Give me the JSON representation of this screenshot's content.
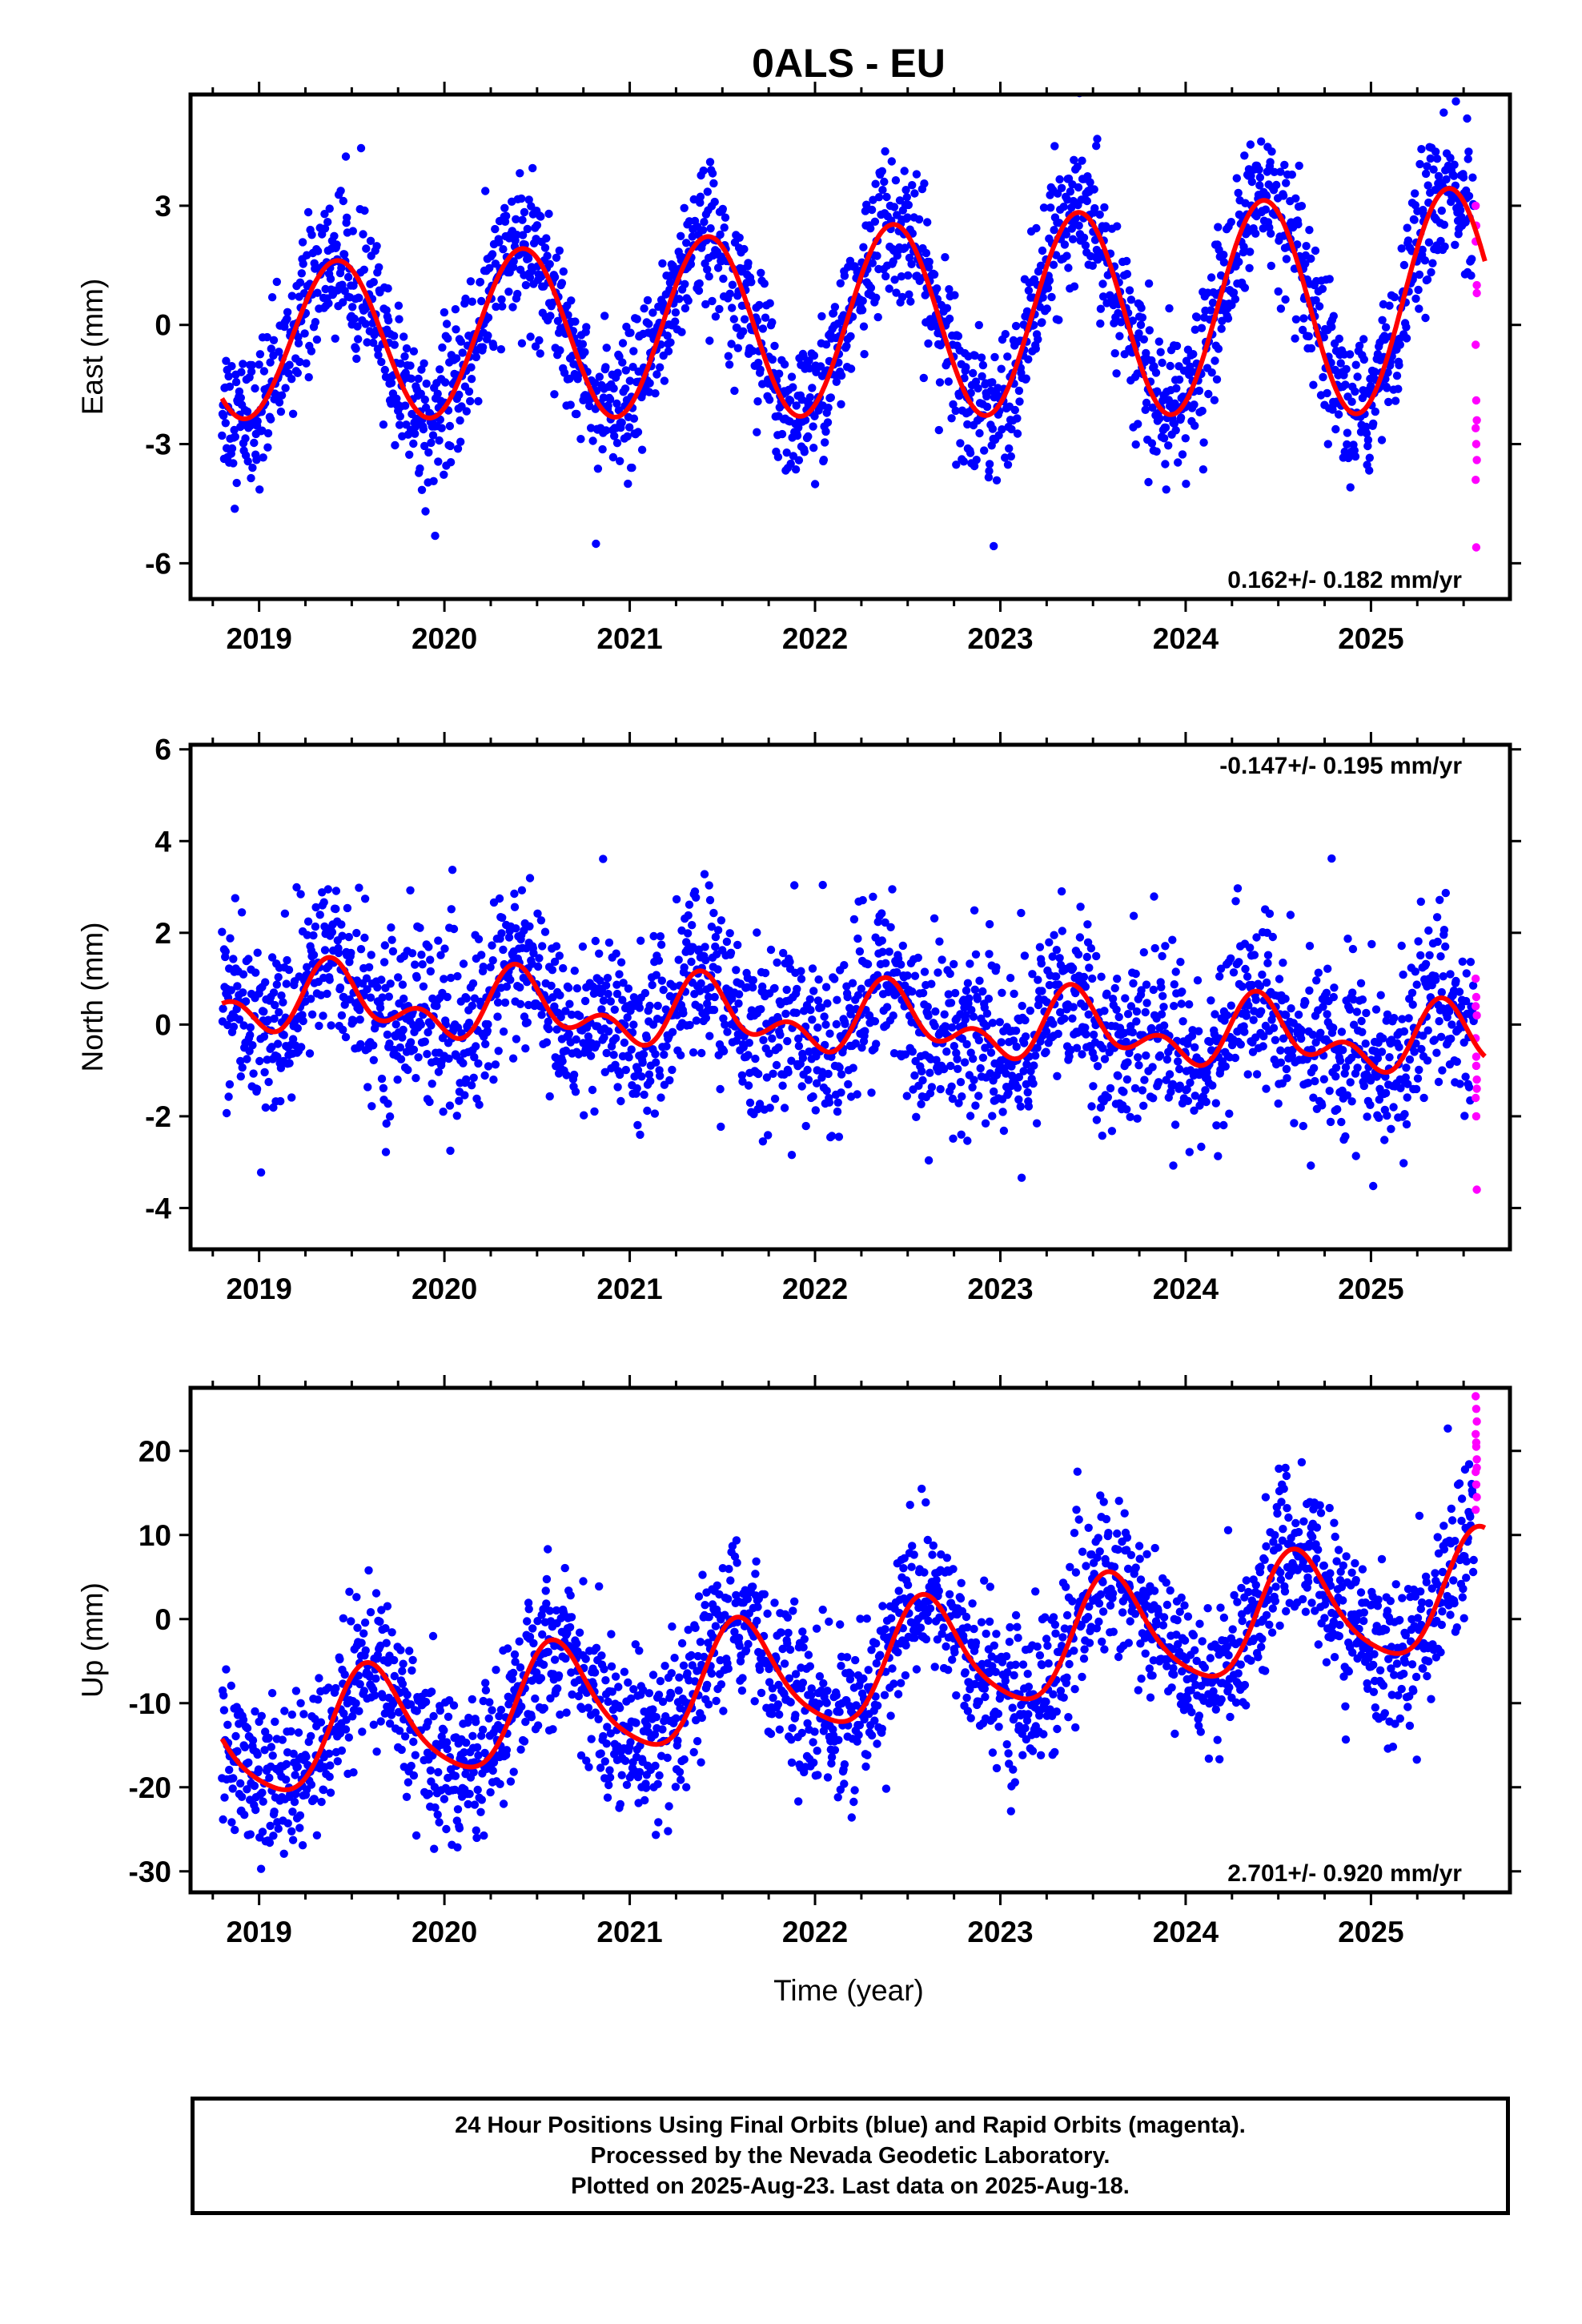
{
  "title": "0ALS - EU",
  "xlabel": "Time (year)",
  "caption": [
    "24 Hour Positions Using Final Orbits (blue) and Rapid Orbits (magenta).",
    "Processed by the Nevada Geodetic Laboratory.",
    "Plotted on 2025-Aug-23. Last data on 2025-Aug-18."
  ],
  "colors": {
    "final_orbits": "#0000ff",
    "rapid_orbits": "#ff00ff",
    "model_fit": "#ff0000"
  },
  "chart_data": [
    {
      "type": "scatter",
      "component": "east",
      "ylabel": "East (mm)",
      "rate_text": "0.162+/- 0.182 mm/yr",
      "rate_position": "bottom-right",
      "xlim": [
        2018.63,
        2025.75
      ],
      "ylim": [
        -6.9,
        5.8
      ],
      "xticks": [
        "2019",
        "2020",
        "2021",
        "2022",
        "2023",
        "2024",
        "2025"
      ],
      "yticks": [
        "3",
        "0",
        "-3",
        "-6"
      ],
      "model": {
        "offset": 0.05,
        "trend": 0.162,
        "annual_amp": 2.35,
        "annual_peak": 0.42,
        "amp_growth": 0.06,
        "semi_amp": 0.0,
        "semi_peak": 0.0
      },
      "scatter_sd": 0.9,
      "final_series_end": 2025.555,
      "rapid_series_start": 2025.565,
      "rapid_values": [
        3.0,
        2.5,
        1.0,
        -0.5,
        -1.9,
        -2.4,
        -2.6,
        -3.0,
        -3.4,
        -3.9,
        -5.6,
        0.8,
        2.1
      ]
    },
    {
      "type": "scatter",
      "component": "north",
      "ylabel": "North (mm)",
      "rate_text": "-0.147+/- 0.195 mm/yr",
      "rate_position": "top-right",
      "xlim": [
        2018.63,
        2025.75
      ],
      "ylim": [
        -4.9,
        6.1
      ],
      "xticks": [
        "2019",
        "2020",
        "2021",
        "2022",
        "2023",
        "2024",
        "2025"
      ],
      "yticks": [
        "6",
        "4",
        "2",
        "0",
        "-2",
        "-4"
      ],
      "model": {
        "offset": 0.1,
        "trend": -0.147,
        "annual_amp": 0.55,
        "annual_peak": 0.42,
        "amp_growth": 0.0,
        "semi_amp": 0.45,
        "semi_peak": 0.37
      },
      "scatter_sd": 0.95,
      "final_series_end": 2025.555,
      "rapid_series_start": 2025.565,
      "rapid_values": [
        1.0,
        0.6,
        0.2,
        -0.3,
        -0.7,
        -1.2,
        -1.6,
        -2.0,
        -3.6,
        0.4,
        -0.9,
        -1.4
      ]
    },
    {
      "type": "scatter",
      "component": "up",
      "ylabel": "Up (mm)",
      "rate_text": "2.701+/- 0.920 mm/yr",
      "rate_position": "bottom-right",
      "xlim": [
        2018.63,
        2025.75
      ],
      "ylim": [
        -32.5,
        27.5
      ],
      "xticks": [
        "2019",
        "2020",
        "2021",
        "2022",
        "2023",
        "2024",
        "2025"
      ],
      "yticks": [
        "20",
        "10",
        "0",
        "-10",
        "-20",
        "-30"
      ],
      "model": {
        "offset": -6.5,
        "trend": 2.701,
        "annual_amp": 6.8,
        "annual_peak": 0.6,
        "amp_growth": 0.0,
        "semi_amp": 1.2,
        "semi_peak": 0.55
      },
      "scatter_sd": 4.6,
      "final_series_end": 2025.555,
      "rapid_series_start": 2025.565,
      "rapid_values": [
        26.5,
        25.0,
        23.5,
        22.0,
        20.5,
        19.0,
        17.5,
        16.0,
        14.5,
        13.0,
        21.0,
        18.0
      ]
    }
  ]
}
